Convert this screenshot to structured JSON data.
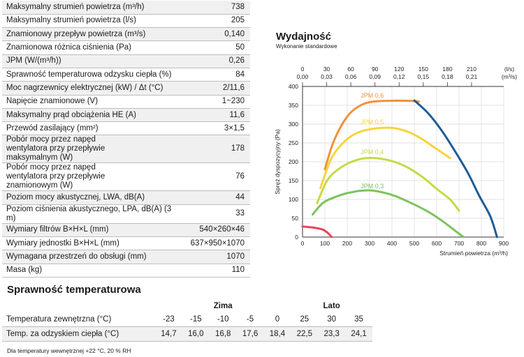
{
  "specs": [
    {
      "label": "Maksymalny strumień powietrza (m³/h)",
      "value": "738"
    },
    {
      "label": "Maksymalny strumień powietrza (l/s)",
      "value": "205"
    },
    {
      "label": "Znamionowy przepływ powietrza (m³/s)",
      "value": "0,140"
    },
    {
      "label": "Znamionowa różnica ciśnienia (Pa)",
      "value": "50"
    },
    {
      "label": "JPM (W/(m³/h))",
      "value": "0,26"
    },
    {
      "label": "Sprawność temperaturowa odzysku ciepła (%)",
      "value": "84"
    },
    {
      "label": "Moc nagrzewnicy elektrycznej (kW) / Δt (°C)",
      "value": "2/11,6"
    },
    {
      "label": "Napięcie znamionowe (V)",
      "value": "1~230"
    },
    {
      "label": "Maksymalny prąd obciążenia HE (A)",
      "value": "11,6"
    },
    {
      "label": "Przewód zasilający (mm²)",
      "value": "3×1,5"
    },
    {
      "label": "Pobór mocy przez napęd wentylatora przy przepływie maksymalnym (W)",
      "value": "178"
    },
    {
      "label": "Pobór mocy przez napęd wentylatora przy przepływie znamionowym (W)",
      "value": "76"
    },
    {
      "label": "Poziom mocy akustycznej, LWA, dB(A)",
      "value": "44"
    },
    {
      "label": "Poziom ciśnienia akustycznego, LPA, dB(A) (3 m)",
      "value": "33"
    },
    {
      "label": "Wymiary filtrów B×H×L (mm)",
      "value": "540×260×46"
    },
    {
      "label": "Wymiary jednostki B×H×L (mm)",
      "value": "637×950×1070"
    },
    {
      "label": "Wymagana przestrzeń do obsługi (mm)",
      "value": "1070"
    },
    {
      "label": "Masa (kg)",
      "value": "110"
    }
  ],
  "performance": {
    "title": "Wydajność",
    "subtitle": "Wykonanie standardowe"
  },
  "chart_data": {
    "type": "line",
    "xlabel": "Strumień powietrza (m³/h)",
    "ylabel": "Spręż dyspozycyjny (Pa)",
    "xlim": [
      0,
      900
    ],
    "ylim": [
      0,
      400
    ],
    "x_ticks": [
      "0",
      "100",
      "200",
      "300",
      "400",
      "500",
      "600",
      "700",
      "800",
      "900"
    ],
    "y_ticks": [
      "0",
      "50",
      "100",
      "150",
      "200",
      "250",
      "300",
      "350",
      "400"
    ],
    "top_axis_ls": [
      "0",
      "30",
      "60",
      "90",
      "120",
      "150",
      "180",
      "210"
    ],
    "top_axis_m3s": [
      "0,00",
      "0,03",
      "0,06",
      "0,09",
      "0,12",
      "0,15",
      "0,18",
      "0,21"
    ],
    "top_unit_ls": "(l/s)",
    "top_unit_m3s": "(m³/s)",
    "series": [
      {
        "name": "JPM 0,6",
        "color": "#f0923a",
        "label_at": [
          260,
          370
        ],
        "points": [
          [
            100,
            180
          ],
          [
            140,
            255
          ],
          [
            200,
            320
          ],
          [
            260,
            350
          ],
          [
            320,
            360
          ],
          [
            400,
            362
          ],
          [
            470,
            362
          ],
          [
            520,
            360
          ]
        ]
      },
      {
        "name": "JPM 0,5",
        "color": "#f7d43c",
        "label_at": [
          260,
          300
        ],
        "points": [
          [
            80,
            130
          ],
          [
            130,
            210
          ],
          [
            190,
            255
          ],
          [
            250,
            278
          ],
          [
            320,
            288
          ],
          [
            400,
            290
          ],
          [
            470,
            280
          ],
          [
            530,
            262
          ],
          [
            590,
            238
          ],
          [
            660,
            210
          ]
        ]
      },
      {
        "name": "JPM 0,4",
        "color": "#c5da45",
        "label_at": [
          260,
          220
        ],
        "points": [
          [
            65,
            90
          ],
          [
            110,
            150
          ],
          [
            160,
            180
          ],
          [
            220,
            200
          ],
          [
            290,
            210
          ],
          [
            380,
            205
          ],
          [
            460,
            188
          ],
          [
            540,
            158
          ],
          [
            600,
            128
          ],
          [
            660,
            100
          ],
          [
            700,
            70
          ]
        ]
      },
      {
        "name": "JPM 0,3",
        "color": "#7dc25e",
        "label_at": [
          260,
          130
        ],
        "points": [
          [
            45,
            60
          ],
          [
            90,
            90
          ],
          [
            140,
            105
          ],
          [
            210,
            118
          ],
          [
            300,
            124
          ],
          [
            400,
            112
          ],
          [
            480,
            92
          ],
          [
            560,
            68
          ],
          [
            620,
            45
          ],
          [
            680,
            18
          ],
          [
            720,
            0
          ]
        ]
      },
      {
        "color": "#1f5c96",
        "points": [
          [
            500,
            363
          ],
          [
            560,
            330
          ],
          [
            620,
            285
          ],
          [
            680,
            230
          ],
          [
            740,
            170
          ],
          [
            790,
            110
          ],
          [
            840,
            55
          ],
          [
            870,
            0
          ]
        ]
      },
      {
        "color": "#e84558",
        "points": [
          [
            0,
            28
          ],
          [
            50,
            25
          ],
          [
            90,
            20
          ],
          [
            115,
            10
          ],
          [
            130,
            0
          ]
        ]
      }
    ]
  },
  "efficiency": {
    "title": "Sprawność temperaturowa",
    "winter_label": "Zima",
    "summer_label": "Lato",
    "row1_label": "Temperatura zewnętrzna (°C)",
    "row1_winter": [
      "-23",
      "-15",
      "-10",
      "-5",
      "0"
    ],
    "row1_summer": [
      "25",
      "30",
      "35"
    ],
    "row2_label": "Temp. za odzyskiem ciepła (°C)",
    "row2_winter": [
      "14,7",
      "16,0",
      "16,8",
      "17,6",
      "18,4"
    ],
    "row2_summer": [
      "22,5",
      "23,3",
      "24,1"
    ],
    "note": "Dla temperatury wewnętrznej +22 °C, 20 % RH"
  }
}
